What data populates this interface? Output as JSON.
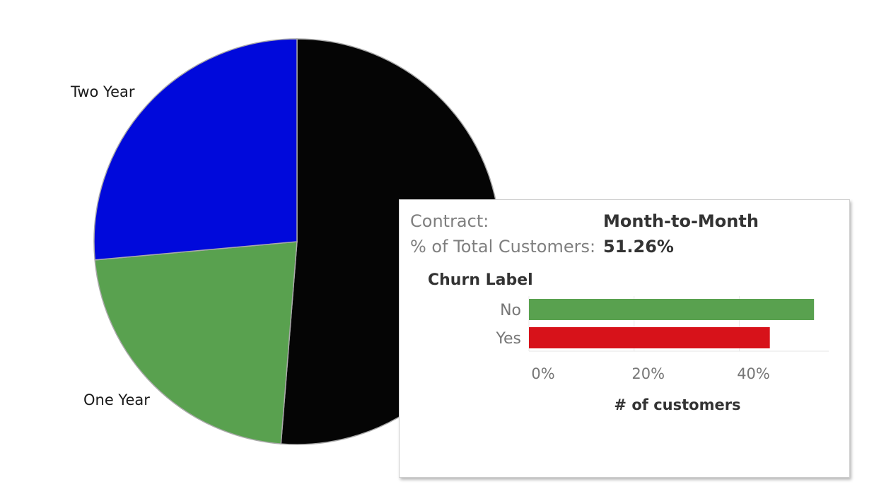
{
  "chart_data": [
    {
      "type": "pie",
      "categories": [
        "Month-to-Month",
        "One Year",
        "Two Year"
      ],
      "values": [
        51.26,
        22.3,
        26.44
      ],
      "colors": [
        "#050505",
        "#59a14f",
        "#0009db"
      ],
      "labels": {
        "two_year": "Two Year",
        "one_year": "One Year"
      }
    },
    {
      "type": "bar",
      "orientation": "horizontal",
      "categories": [
        "No",
        "Yes"
      ],
      "values": [
        54.2,
        45.8
      ],
      "colors": [
        "#59a14f",
        "#d7121a"
      ],
      "xlabel": "# of customers",
      "ylabel": "Churn Label",
      "xlim": [
        0,
        57
      ],
      "ticks": [
        0,
        20,
        40
      ],
      "tick_labels": [
        "0%",
        "20%",
        "40%"
      ]
    }
  ],
  "tooltip": {
    "contract_key": "Contract:",
    "contract_value": "Month-to-Month",
    "pct_key": "% of Total Customers:",
    "pct_value": "51.26%"
  }
}
